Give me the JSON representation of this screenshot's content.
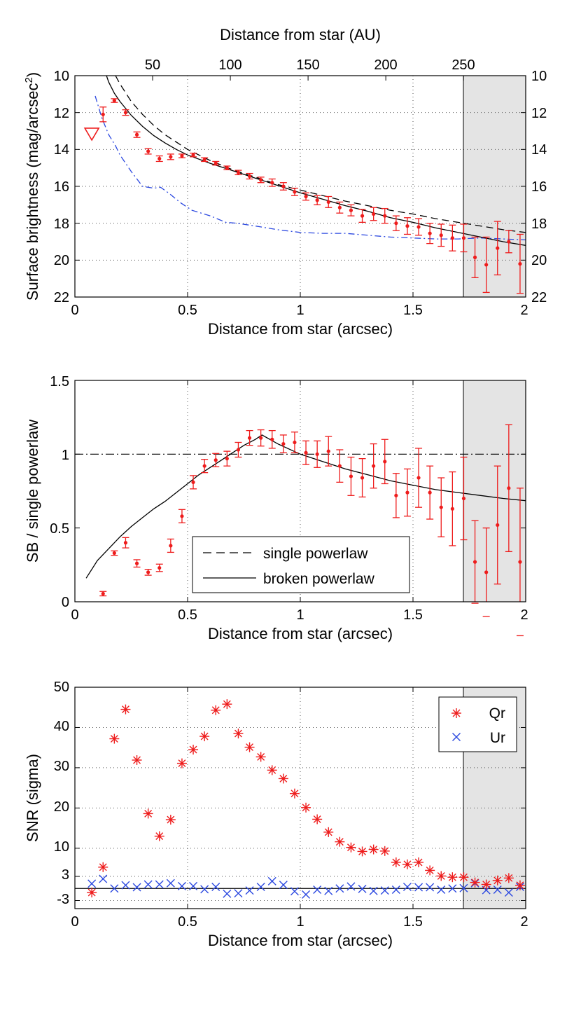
{
  "chart_data": [
    {
      "type": "scatter",
      "xlabel": "Distance from star (arcsec)",
      "ylabel": "Surface brightness (mag/arcsec",
      "ylabel_sup": "2",
      "ylabel_tail": ")",
      "x2label": "Distance from star (AU)",
      "xlim": [
        0,
        2
      ],
      "ylim": [
        10,
        22
      ],
      "y_reversed": true,
      "x2lim_au": [
        0,
        290
      ],
      "xticks": [
        "0",
        "0.5",
        "1",
        "1.5",
        "2"
      ],
      "yticks": [
        "10",
        "12",
        "14",
        "16",
        "18",
        "20",
        "22"
      ],
      "x2ticks": [
        "50",
        "100",
        "150",
        "200",
        "250"
      ],
      "shaded_region_x": [
        1.72,
        2
      ],
      "grid": true,
      "series": [
        {
          "x": [
            0.125,
            0.175,
            0.225,
            0.275,
            0.325,
            0.375,
            0.425,
            0.475,
            0.525,
            0.575,
            0.625,
            0.675,
            0.725,
            0.775,
            0.825,
            0.875,
            0.925,
            0.975,
            1.025,
            1.075,
            1.125,
            1.175,
            1.225,
            1.275,
            1.325,
            1.375,
            1.425,
            1.475,
            1.525,
            1.575,
            1.625,
            1.675,
            1.725,
            1.775,
            1.825,
            1.875,
            1.925,
            1.975
          ],
          "values": [
            12.1,
            11.35,
            12.0,
            13.2,
            14.1,
            14.5,
            14.4,
            14.35,
            14.3,
            14.55,
            14.75,
            15.0,
            15.25,
            15.45,
            15.65,
            15.8,
            16.0,
            16.3,
            16.55,
            16.75,
            16.85,
            17.15,
            17.3,
            17.6,
            17.5,
            17.6,
            18.0,
            18.15,
            18.2,
            18.55,
            18.65,
            18.8,
            18.8,
            19.85,
            20.25,
            19.35,
            19.0,
            20.2
          ],
          "errors": [
            0.4,
            0.1,
            0.15,
            0.15,
            0.15,
            0.15,
            0.15,
            0.1,
            0.1,
            0.1,
            0.1,
            0.1,
            0.12,
            0.15,
            0.15,
            0.2,
            0.2,
            0.2,
            0.2,
            0.25,
            0.3,
            0.3,
            0.3,
            0.35,
            0.35,
            0.4,
            0.4,
            0.45,
            0.45,
            0.55,
            0.6,
            0.7,
            0.75,
            1.1,
            1.5,
            1.45,
            0.6,
            1.6
          ]
        }
      ],
      "upper_limit": {
        "x": 0.075,
        "y": 13.15
      },
      "curves": {
        "single_powerlaw": {
          "x": [
            0.18,
            0.2,
            0.25,
            0.3,
            0.35,
            0.4,
            0.45,
            0.5,
            0.6,
            0.7,
            0.8,
            0.9,
            1.0,
            1.1,
            1.2,
            1.3,
            1.4,
            1.5,
            1.6,
            1.7,
            1.8,
            1.9,
            2.0
          ],
          "values": [
            10.0,
            10.45,
            11.4,
            12.1,
            12.7,
            13.2,
            13.6,
            14.0,
            14.6,
            15.1,
            15.5,
            15.9,
            16.2,
            16.5,
            16.8,
            17.05,
            17.3,
            17.5,
            17.75,
            17.95,
            18.15,
            18.35,
            18.5
          ]
        },
        "broken_powerlaw": {
          "x": [
            0.14,
            0.15,
            0.175,
            0.2,
            0.25,
            0.3,
            0.35,
            0.4,
            0.45,
            0.5,
            0.6,
            0.7,
            0.8,
            0.9,
            1.0,
            1.1,
            1.2,
            1.3,
            1.4,
            1.5,
            1.6,
            1.7,
            1.8,
            1.9,
            2.0
          ],
          "values": [
            10.0,
            10.35,
            10.95,
            11.4,
            12.15,
            12.75,
            13.25,
            13.65,
            14.0,
            14.3,
            14.75,
            15.15,
            15.55,
            15.95,
            16.35,
            16.7,
            17.05,
            17.35,
            17.7,
            17.95,
            18.25,
            18.5,
            18.75,
            19.0,
            19.2
          ]
        },
        "blue_dashdot": {
          "x": [
            0.09,
            0.12,
            0.15,
            0.18,
            0.2,
            0.25,
            0.3,
            0.35,
            0.38,
            0.42,
            0.47,
            0.52,
            0.6,
            0.67,
            0.72,
            0.8,
            0.9,
            1.0,
            1.1,
            1.2,
            1.3,
            1.4,
            1.5,
            1.6,
            1.7,
            1.8,
            1.9,
            2.0
          ],
          "values": [
            11.1,
            12.3,
            13.2,
            13.8,
            14.3,
            15.2,
            16.0,
            16.1,
            16.05,
            16.4,
            16.9,
            17.3,
            17.6,
            17.95,
            18.0,
            18.15,
            18.35,
            18.5,
            18.55,
            18.55,
            18.65,
            18.75,
            18.8,
            18.85,
            18.85,
            18.8,
            18.85,
            18.9
          ]
        }
      }
    },
    {
      "type": "scatter",
      "xlabel": "Distance from star (arcsec)",
      "ylabel": "SB / single powerlaw",
      "xlim": [
        0,
        2
      ],
      "ylim": [
        0,
        1.5
      ],
      "xticks": [
        "0",
        "0.5",
        "1",
        "1.5",
        "2"
      ],
      "yticks": [
        "0",
        "0.5",
        "1",
        "1.5"
      ],
      "shaded_region_x": [
        1.72,
        2
      ],
      "grid": true,
      "legend": {
        "position": "lower-center",
        "entries": [
          "single powerlaw",
          "broken powerlaw"
        ]
      },
      "reference_line_y": 1,
      "series": [
        {
          "x": [
            0.125,
            0.175,
            0.225,
            0.275,
            0.325,
            0.375,
            0.425,
            0.475,
            0.525,
            0.575,
            0.625,
            0.675,
            0.725,
            0.775,
            0.825,
            0.875,
            0.925,
            0.975,
            1.025,
            1.075,
            1.125,
            1.175,
            1.225,
            1.275,
            1.325,
            1.375,
            1.425,
            1.475,
            1.525,
            1.575,
            1.625,
            1.675,
            1.725,
            1.775,
            1.825,
            1.875,
            1.925,
            1.975
          ],
          "values": [
            0.055,
            0.33,
            0.4,
            0.26,
            0.2,
            0.23,
            0.38,
            0.58,
            0.81,
            0.92,
            0.96,
            0.97,
            1.03,
            1.11,
            1.11,
            1.1,
            1.07,
            1.08,
            1.01,
            1.0,
            1.02,
            0.92,
            0.85,
            0.84,
            0.92,
            0.95,
            0.72,
            0.74,
            0.84,
            0.74,
            0.64,
            0.63,
            0.7,
            0.27,
            0.2,
            0.52,
            0.77,
            0.27
          ],
          "errors": [
            0.015,
            0.015,
            0.035,
            0.025,
            0.02,
            0.025,
            0.045,
            0.045,
            0.045,
            0.045,
            0.045,
            0.05,
            0.05,
            0.05,
            0.055,
            0.06,
            0.06,
            0.07,
            0.08,
            0.09,
            0.1,
            0.11,
            0.13,
            0.13,
            0.15,
            0.15,
            0.15,
            0.16,
            0.2,
            0.18,
            0.2,
            0.25,
            0.28,
            0.28,
            0.3,
            0.4,
            0.43,
            0.5
          ]
        }
      ],
      "curves": {
        "broken_powerlaw": {
          "x": [
            0.05,
            0.1,
            0.15,
            0.2,
            0.25,
            0.3,
            0.35,
            0.4,
            0.45,
            0.5,
            0.55,
            0.6,
            0.65,
            0.7,
            0.75,
            0.8,
            0.83,
            0.9,
            1.0,
            1.1,
            1.2,
            1.3,
            1.4,
            1.5,
            1.6,
            1.7,
            1.8,
            1.9,
            2.0
          ],
          "values": [
            0.16,
            0.28,
            0.36,
            0.44,
            0.51,
            0.57,
            0.63,
            0.68,
            0.74,
            0.8,
            0.86,
            0.91,
            0.96,
            1.01,
            1.06,
            1.1,
            1.13,
            1.07,
            1.0,
            0.95,
            0.9,
            0.86,
            0.82,
            0.79,
            0.76,
            0.74,
            0.72,
            0.7,
            0.685
          ]
        }
      }
    },
    {
      "type": "scatter",
      "xlabel": "Distance from star (arcsec)",
      "ylabel": "SNR (sigma)",
      "xlim": [
        0,
        2
      ],
      "ylim": [
        -5,
        50
      ],
      "xticks": [
        "0",
        "0.5",
        "1",
        "1.5",
        "2"
      ],
      "yticks": [
        "-3",
        "3",
        "10",
        "20",
        "30",
        "40",
        "50"
      ],
      "shaded_region_x": [
        1.72,
        2
      ],
      "grid": true,
      "reference_line_y": 0,
      "legend": {
        "position": "top-right",
        "entries": [
          "Qr",
          "Ur"
        ]
      },
      "x": [
        0.075,
        0.125,
        0.175,
        0.225,
        0.275,
        0.325,
        0.375,
        0.425,
        0.475,
        0.525,
        0.575,
        0.625,
        0.675,
        0.725,
        0.775,
        0.825,
        0.875,
        0.925,
        0.975,
        1.025,
        1.075,
        1.125,
        1.175,
        1.225,
        1.275,
        1.325,
        1.375,
        1.425,
        1.475,
        1.525,
        1.575,
        1.625,
        1.675,
        1.725,
        1.775,
        1.825,
        1.875,
        1.925,
        1.975
      ],
      "series": [
        {
          "name": "Qr",
          "values": [
            -1.0,
            5.3,
            37.2,
            44.5,
            31.9,
            18.6,
            13.0,
            17.1,
            31.1,
            34.5,
            37.8,
            44.3,
            45.8,
            38.5,
            35.1,
            32.7,
            29.4,
            27.3,
            23.6,
            20.1,
            17.2,
            14.0,
            11.6,
            10.2,
            9.2,
            9.7,
            9.3,
            6.5,
            6.0,
            6.5,
            4.5,
            3.1,
            2.8,
            2.8,
            1.5,
            1.0,
            2.0,
            2.6,
            0.8
          ]
        },
        {
          "name": "Ur",
          "values": [
            1.2,
            2.4,
            0.0,
            0.8,
            0.3,
            1.0,
            1.0,
            1.3,
            0.6,
            0.6,
            -0.2,
            0.4,
            -1.3,
            -1.2,
            -0.5,
            0.4,
            1.8,
            0.9,
            -0.7,
            -1.5,
            -0.3,
            -0.6,
            0.0,
            0.5,
            -0.1,
            -0.6,
            -0.5,
            -0.3,
            0.4,
            0.3,
            0.3,
            -0.3,
            0.0,
            0.1,
            1.3,
            -0.4,
            -0.3,
            -1.0,
            0.4
          ]
        }
      ]
    }
  ],
  "colors": {
    "data": "#ee1c1c",
    "blue": "#2b48e0",
    "shade": "#e4e4e4",
    "axis": "#000000",
    "grid": "#555555"
  }
}
